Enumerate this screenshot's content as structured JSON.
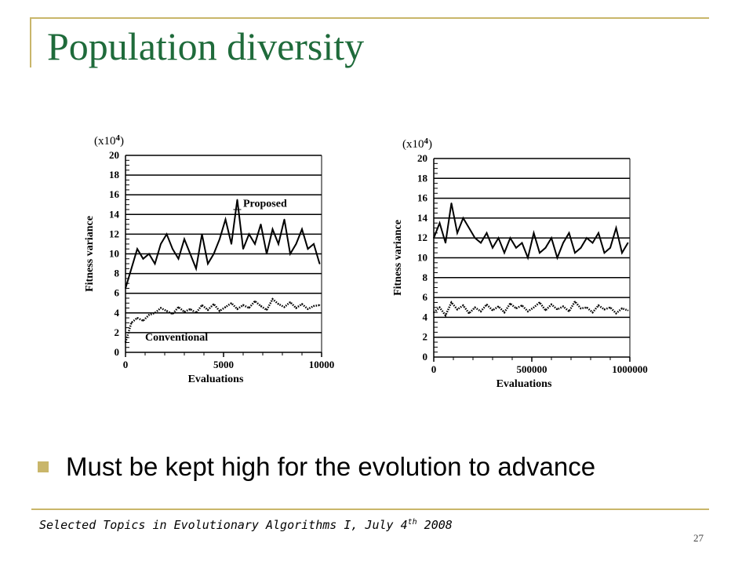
{
  "slide": {
    "title": "Population diversity",
    "bullet": "Must be kept high for the evolution to advance",
    "footer_text": "Selected Topics in Evolutionary Algorithms I, July 4",
    "footer_sup": "th",
    "footer_year": " 2008",
    "page_number": "27",
    "accent_color": "#c9b66a",
    "title_color": "#1f6b3b"
  },
  "chart_data": [
    {
      "type": "line",
      "multiplier_label": "(x10",
      "multiplier_exp": "4",
      "multiplier_close": ")",
      "ylabel": "Fitness variance",
      "xlabel": "Evaluations",
      "ylim": [
        0,
        20
      ],
      "xlim": [
        0,
        10000
      ],
      "yticks": [
        "0",
        "2",
        "4",
        "6",
        "8",
        "10",
        "12",
        "14",
        "16",
        "18",
        "20"
      ],
      "xticks": [
        "0",
        "5000",
        "10000"
      ],
      "xtick_values": [
        0,
        5000,
        10000
      ],
      "annotations": [
        "Proposed",
        "Conventional"
      ],
      "series": [
        {
          "name": "Proposed",
          "style": "solid",
          "x": [
            0,
            300,
            600,
            900,
            1200,
            1500,
            1800,
            2100,
            2400,
            2700,
            3000,
            3300,
            3600,
            3900,
            4200,
            4500,
            4800,
            5100,
            5400,
            5700,
            6000,
            6300,
            6600,
            6900,
            7200,
            7500,
            7800,
            8100,
            8400,
            8700,
            9000,
            9300,
            9600,
            9900
          ],
          "values": [
            6.5,
            8.5,
            10.5,
            9.5,
            10.0,
            9.0,
            11.0,
            12.0,
            10.5,
            9.5,
            11.5,
            10.0,
            8.5,
            12.0,
            9.0,
            10.0,
            11.5,
            13.5,
            11.0,
            15.5,
            10.5,
            12.0,
            11.0,
            13.0,
            10.0,
            12.5,
            11.0,
            13.5,
            10.0,
            11.0,
            12.5,
            10.5,
            11.0,
            9.0
          ]
        },
        {
          "name": "Conventional",
          "style": "dotted",
          "x": [
            0,
            300,
            600,
            900,
            1200,
            1500,
            1800,
            2100,
            2400,
            2700,
            3000,
            3300,
            3600,
            3900,
            4200,
            4500,
            4800,
            5100,
            5400,
            5700,
            6000,
            6300,
            6600,
            6900,
            7200,
            7500,
            7800,
            8100,
            8400,
            8700,
            9000,
            9300,
            9600,
            9900
          ],
          "values": [
            1.0,
            3.0,
            3.5,
            3.2,
            3.8,
            4.0,
            4.5,
            4.2,
            3.9,
            4.6,
            4.1,
            4.4,
            4.0,
            4.8,
            4.3,
            4.9,
            4.2,
            4.6,
            5.0,
            4.4,
            4.8,
            4.5,
            5.2,
            4.7,
            4.3,
            5.4,
            4.9,
            4.6,
            5.1,
            4.5,
            4.9,
            4.4,
            4.7,
            4.8
          ]
        }
      ]
    },
    {
      "type": "line",
      "multiplier_label": "(x10",
      "multiplier_exp": "4",
      "multiplier_close": ")",
      "ylabel": "Fitness variance",
      "xlabel": "Evaluations",
      "ylim": [
        0,
        20
      ],
      "xlim": [
        0,
        1000000
      ],
      "yticks": [
        "0",
        "2",
        "4",
        "6",
        "8",
        "10",
        "12",
        "14",
        "16",
        "18",
        "20"
      ],
      "xticks": [
        "0",
        "500000",
        "1000000"
      ],
      "xtick_values": [
        0,
        500000,
        1000000
      ],
      "series": [
        {
          "name": "",
          "style": "solid",
          "x": [
            0,
            30000,
            60000,
            90000,
            120000,
            150000,
            180000,
            210000,
            240000,
            270000,
            300000,
            330000,
            360000,
            390000,
            420000,
            450000,
            480000,
            510000,
            540000,
            570000,
            600000,
            630000,
            660000,
            690000,
            720000,
            750000,
            780000,
            810000,
            840000,
            870000,
            900000,
            930000,
            960000,
            990000
          ],
          "values": [
            12.0,
            13.5,
            11.5,
            15.5,
            12.5,
            14.0,
            13.0,
            12.0,
            11.5,
            12.5,
            11.0,
            12.0,
            10.5,
            12.0,
            11.0,
            11.5,
            10.0,
            12.5,
            10.5,
            11.0,
            12.0,
            10.0,
            11.5,
            12.5,
            10.5,
            11.0,
            12.0,
            11.5,
            12.5,
            10.5,
            11.0,
            13.0,
            10.5,
            11.5
          ]
        },
        {
          "name": "",
          "style": "dotted",
          "x": [
            0,
            30000,
            60000,
            90000,
            120000,
            150000,
            180000,
            210000,
            240000,
            270000,
            300000,
            330000,
            360000,
            390000,
            420000,
            450000,
            480000,
            510000,
            540000,
            570000,
            600000,
            630000,
            660000,
            690000,
            720000,
            750000,
            780000,
            810000,
            840000,
            870000,
            900000,
            930000,
            960000,
            990000
          ],
          "values": [
            4.5,
            5.0,
            4.2,
            5.5,
            4.8,
            5.2,
            4.4,
            5.0,
            4.6,
            5.3,
            4.7,
            5.1,
            4.5,
            5.4,
            4.9,
            5.2,
            4.6,
            5.0,
            5.5,
            4.7,
            5.3,
            4.8,
            5.1,
            4.6,
            5.6,
            4.9,
            5.0,
            4.5,
            5.2,
            4.8,
            5.0,
            4.4,
            4.9,
            4.7
          ]
        }
      ]
    }
  ]
}
